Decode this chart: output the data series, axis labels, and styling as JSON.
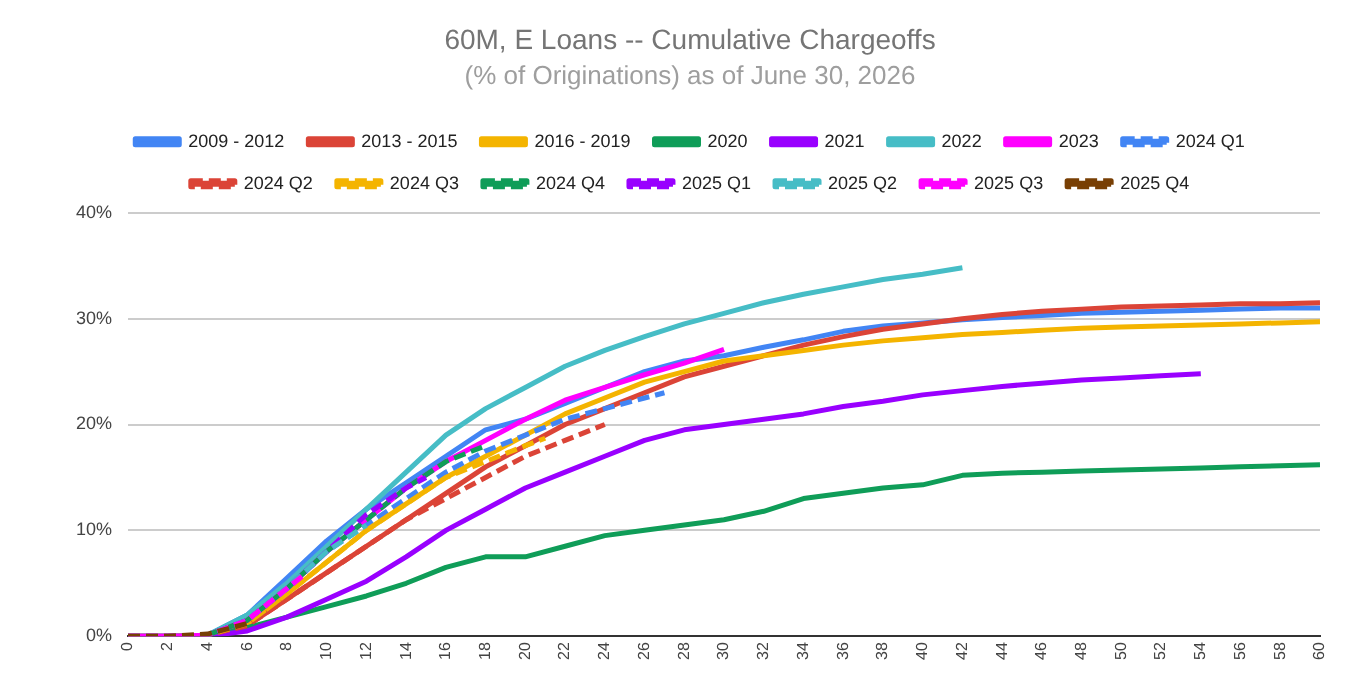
{
  "chart_data": {
    "type": "line",
    "title": "60M, E Loans -- Cumulative Chargeoffs",
    "subtitle": "(% of Originations) as of June 30, 2026",
    "xlim": [
      0,
      60
    ],
    "xticks": [
      0,
      2,
      4,
      6,
      8,
      10,
      12,
      14,
      16,
      18,
      20,
      22,
      24,
      26,
      28,
      30,
      32,
      34,
      36,
      38,
      40,
      42,
      44,
      46,
      48,
      50,
      52,
      54,
      56,
      58,
      60
    ],
    "ylim": [
      0,
      40
    ],
    "yticks": [
      {
        "value": 0,
        "label": "0%"
      },
      {
        "value": 10,
        "label": "10%"
      },
      {
        "value": 20,
        "label": "20%"
      },
      {
        "value": 30,
        "label": "30%"
      },
      {
        "value": 40,
        "label": "40%"
      }
    ],
    "grid": "y",
    "legend": "top",
    "marker": "none",
    "x": [
      0,
      2,
      4,
      6,
      8,
      10,
      12,
      14,
      16,
      18,
      20,
      22,
      24,
      26,
      28,
      30,
      32,
      34,
      36,
      38,
      40,
      42,
      44,
      46,
      48,
      50,
      52,
      54,
      56,
      58,
      60
    ],
    "series": [
      {
        "name": "2009 - 2012",
        "color": "#4285f4",
        "line_style": "solid",
        "values": [
          0,
          0,
          0.1,
          2,
          5.5,
          9,
          12,
          14.5,
          17,
          19.5,
          20.5,
          22,
          23.5,
          25,
          26,
          26.5,
          27.3,
          28,
          28.8,
          29.3,
          29.6,
          29.9,
          30.1,
          30.3,
          30.5,
          30.6,
          30.7,
          30.8,
          30.9,
          31,
          31
        ]
      },
      {
        "name": "2013 - 2015",
        "color": "#db4437",
        "line_style": "solid",
        "values": [
          0,
          0,
          0.1,
          1,
          3.5,
          6,
          8.5,
          11,
          13.5,
          16,
          18,
          20,
          21.5,
          23,
          24.5,
          25.5,
          26.5,
          27.5,
          28.3,
          29,
          29.5,
          30,
          30.4,
          30.7,
          30.9,
          31.1,
          31.2,
          31.3,
          31.4,
          31.4,
          31.5
        ]
      },
      {
        "name": "2016 - 2019",
        "color": "#f4b400",
        "line_style": "solid",
        "values": [
          0,
          0,
          0.1,
          1.2,
          4,
          7,
          10,
          12.5,
          15,
          17,
          19,
          21,
          22.5,
          24,
          25,
          26,
          26.5,
          27,
          27.5,
          27.9,
          28.2,
          28.5,
          28.7,
          28.9,
          29.1,
          29.2,
          29.3,
          29.4,
          29.5,
          29.6,
          29.7
        ]
      },
      {
        "name": "2020",
        "color": "#0f9d58",
        "line_style": "solid",
        "values": [
          null,
          null,
          0,
          0.8,
          1.8,
          2.8,
          3.8,
          5,
          6.5,
          7.5,
          7.5,
          8.5,
          9.5,
          10,
          10.5,
          11,
          11.8,
          13,
          13.5,
          14,
          14.3,
          15.2,
          15.4,
          15.5,
          15.6,
          15.7,
          15.8,
          15.9,
          16,
          16.1,
          16.2
        ]
      },
      {
        "name": "2021",
        "color": "#9900ff",
        "line_style": "solid",
        "x": [
          0,
          2,
          4,
          6,
          8,
          10,
          12,
          14,
          16,
          18,
          20,
          22,
          24,
          26,
          28,
          30,
          32,
          34,
          36,
          38,
          40,
          42,
          44,
          46,
          48,
          50,
          52,
          54
        ],
        "values": [
          0,
          0,
          0,
          0.5,
          1.8,
          3.5,
          5.2,
          7.5,
          10,
          12,
          14,
          15.5,
          17,
          18.5,
          19.5,
          20,
          20.5,
          21,
          21.7,
          22.2,
          22.8,
          23.2,
          23.6,
          23.9,
          24.2,
          24.4,
          24.6,
          24.8
        ]
      },
      {
        "name": "2022",
        "color": "#46bdc6",
        "line_style": "solid",
        "x": [
          0,
          2,
          4,
          6,
          8,
          10,
          12,
          14,
          16,
          18,
          20,
          22,
          24,
          26,
          28,
          30,
          32,
          34,
          36,
          38,
          40,
          42
        ],
        "values": [
          0,
          0,
          0.1,
          2,
          5,
          8.5,
          12,
          15.5,
          19,
          21.5,
          23.5,
          25.5,
          27,
          28.3,
          29.5,
          30.5,
          31.5,
          32.3,
          33,
          33.7,
          34.2,
          34.8
        ]
      },
      {
        "name": "2023",
        "color": "#ff00ff",
        "line_style": "solid",
        "x": [
          0,
          2,
          4,
          6,
          8,
          10,
          12,
          14,
          16,
          18,
          20,
          22,
          24,
          26,
          28,
          30
        ],
        "values": [
          0,
          0,
          0.1,
          1.5,
          4.5,
          8,
          11,
          14,
          16.5,
          18.5,
          20.5,
          22.3,
          23.5,
          24.7,
          25.8,
          27.1
        ]
      },
      {
        "name": "2024 Q1",
        "color": "#4285f4",
        "line_style": "dashed",
        "x": [
          0,
          2,
          4,
          6,
          8,
          10,
          12,
          14,
          16,
          18,
          20,
          22,
          24,
          26,
          27
        ],
        "values": [
          0,
          0,
          0.1,
          1.5,
          4.5,
          8,
          10.5,
          13,
          15.5,
          17.5,
          19,
          20.5,
          21.5,
          22.5,
          23
        ]
      },
      {
        "name": "2024 Q2",
        "color": "#db4437",
        "line_style": "dashed",
        "x": [
          0,
          2,
          4,
          6,
          8,
          10,
          12,
          14,
          16,
          18,
          20,
          22,
          24
        ],
        "values": [
          0,
          0,
          0.1,
          1,
          3.5,
          6,
          8.5,
          11,
          13,
          15,
          17,
          18.5,
          20
        ]
      },
      {
        "name": "2024 Q3",
        "color": "#f4b400",
        "line_style": "dashed",
        "x": [
          0,
          2,
          4,
          6,
          8,
          10,
          12,
          14,
          16,
          18,
          20,
          21
        ],
        "values": [
          0,
          0,
          0.1,
          1.2,
          4,
          7,
          10,
          12.5,
          15,
          16.5,
          18,
          18.7
        ]
      },
      {
        "name": "2024 Q4",
        "color": "#0f9d58",
        "line_style": "dashed",
        "x": [
          4,
          6,
          8,
          10,
          12,
          14,
          16,
          18
        ],
        "values": [
          0.1,
          1.5,
          4.5,
          8,
          11,
          14,
          16.5,
          18
        ]
      },
      {
        "name": "2025 Q1",
        "color": "#9900ff",
        "line_style": "dashed",
        "x": [
          0,
          2,
          4,
          6,
          8,
          10,
          12,
          14,
          15
        ],
        "values": [
          0,
          0,
          0.1,
          1.5,
          4.5,
          8,
          11.5,
          14,
          15
        ]
      },
      {
        "name": "2025 Q2",
        "color": "#46bdc6",
        "line_style": "dashed",
        "x": [
          0,
          2,
          4,
          6,
          8,
          10,
          12
        ],
        "values": [
          0,
          0,
          0.1,
          1.5,
          4.5,
          8,
          10.5
        ]
      },
      {
        "name": "2025 Q3",
        "color": "#ff00ff",
        "line_style": "dashed",
        "x": [
          0,
          2,
          4,
          6,
          8,
          9
        ],
        "values": [
          0,
          0,
          0.1,
          1.5,
          4.5,
          6
        ]
      },
      {
        "name": "2025 Q4",
        "color": "#783f04",
        "line_style": "dashed",
        "x": [
          0,
          2,
          4,
          6
        ],
        "values": [
          0,
          0,
          0.2,
          1.2
        ]
      }
    ]
  }
}
